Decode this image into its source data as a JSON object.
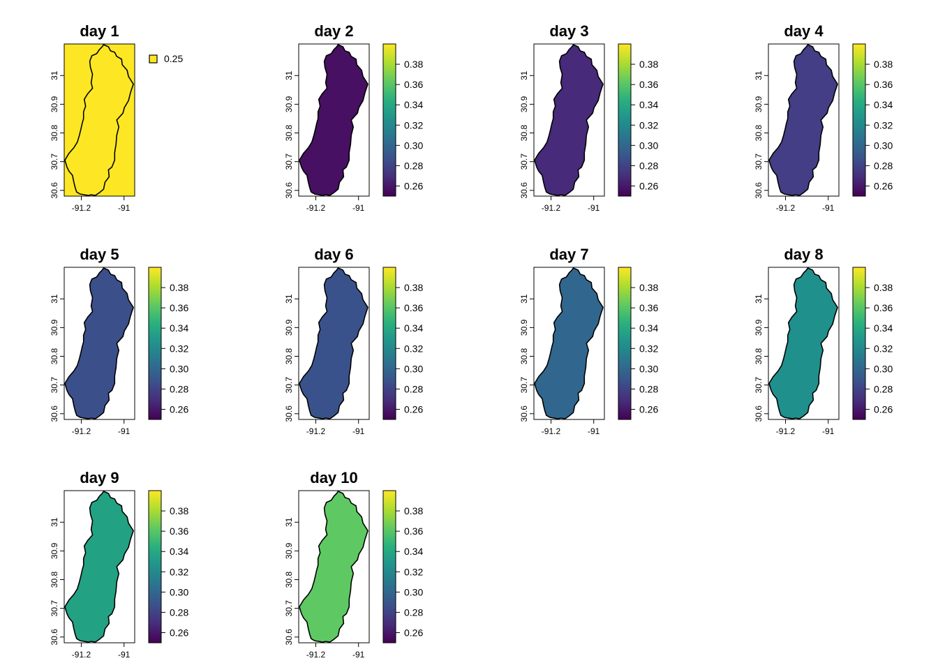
{
  "chart_data": {
    "type": "heatmap",
    "description_panels": "small multiples of a raster map of a watershed",
    "x_ticks": [
      "-91.2",
      "-91"
    ],
    "y_ticks": [
      "30.6",
      "30.7",
      "30.8",
      "30.9",
      "31"
    ],
    "xlim": [
      -91.28,
      -90.95
    ],
    "ylim": [
      30.58,
      31.11
    ],
    "legend_ticks": [
      "0.26",
      "0.28",
      "0.30",
      "0.32",
      "0.34",
      "0.36",
      "0.38"
    ],
    "legend_range": [
      0.25,
      0.4
    ],
    "palette": "viridis",
    "panels": [
      {
        "title": "day 1",
        "value": 0.25,
        "legend_type": "categorical",
        "legend_label": "0.25",
        "fill": "#fde725",
        "raster_full_extent": true
      },
      {
        "title": "day 2",
        "value": 0.255,
        "legend_type": "continuous",
        "fill": "#471063"
      },
      {
        "title": "day 3",
        "value": 0.265,
        "legend_type": "continuous",
        "fill": "#472a7a"
      },
      {
        "title": "day 4",
        "value": 0.273,
        "legend_type": "continuous",
        "fill": "#433e85"
      },
      {
        "title": "day 5",
        "value": 0.28,
        "legend_type": "continuous",
        "fill": "#3b4f8a"
      },
      {
        "title": "day 6",
        "value": 0.284,
        "legend_type": "continuous",
        "fill": "#3a528b"
      },
      {
        "title": "day 7",
        "value": 0.298,
        "legend_type": "continuous",
        "fill": "#31678e"
      },
      {
        "title": "day 8",
        "value": 0.322,
        "legend_type": "continuous",
        "fill": "#20908d"
      },
      {
        "title": "day 9",
        "value": 0.335,
        "legend_type": "continuous",
        "fill": "#23a183"
      },
      {
        "title": "day 10",
        "value": 0.36,
        "legend_type": "continuous",
        "fill": "#5ec962"
      }
    ]
  }
}
